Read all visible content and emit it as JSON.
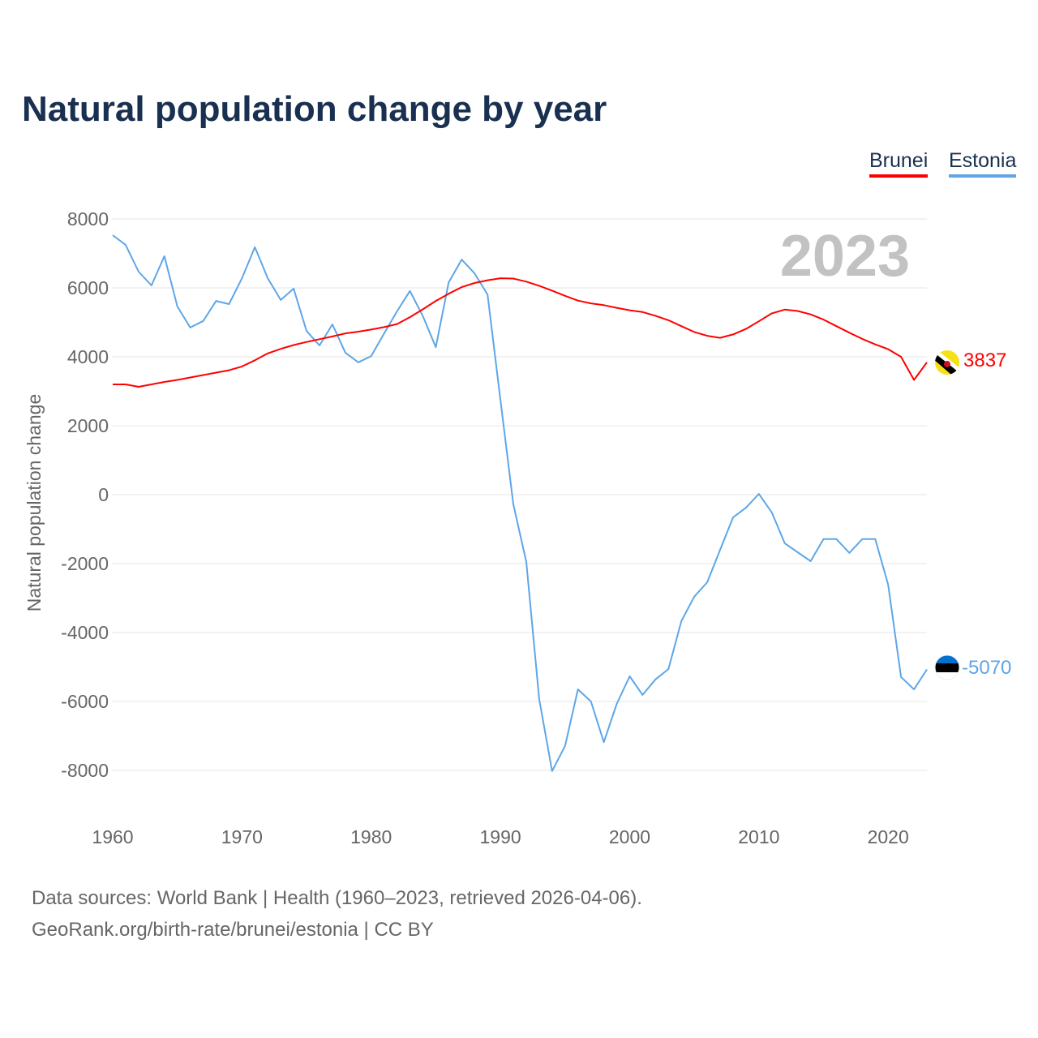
{
  "chart_data": {
    "type": "line",
    "title": "Natural population change by year",
    "xlabel": "",
    "ylabel": "Natural population change",
    "xlim": [
      1960,
      2023
    ],
    "ylim": [
      -8000,
      8000
    ],
    "yticks": [
      8000,
      6000,
      4000,
      2000,
      0,
      -2000,
      -4000,
      -6000,
      -8000
    ],
    "xticks": [
      1960,
      1970,
      1980,
      1990,
      2000,
      2010,
      2020
    ],
    "grid": true,
    "legend_position": "top-right",
    "year_label": "2023",
    "x": [
      1960,
      1961,
      1962,
      1963,
      1964,
      1965,
      1966,
      1967,
      1968,
      1969,
      1970,
      1971,
      1972,
      1973,
      1974,
      1975,
      1976,
      1977,
      1978,
      1979,
      1980,
      1981,
      1982,
      1983,
      1984,
      1985,
      1986,
      1987,
      1988,
      1989,
      1990,
      1991,
      1992,
      1993,
      1994,
      1995,
      1996,
      1997,
      1998,
      1999,
      2000,
      2001,
      2002,
      2003,
      2004,
      2005,
      2006,
      2007,
      2008,
      2009,
      2010,
      2011,
      2012,
      2013,
      2014,
      2015,
      2016,
      2017,
      2018,
      2019,
      2020,
      2021,
      2022,
      2023
    ],
    "series": [
      {
        "name": "Brunei",
        "color": "#ff0000",
        "end_label": "3837",
        "values": [
          3200,
          3200,
          3130,
          3200,
          3270,
          3330,
          3400,
          3470,
          3540,
          3610,
          3720,
          3900,
          4100,
          4230,
          4340,
          4430,
          4510,
          4590,
          4680,
          4730,
          4790,
          4860,
          4950,
          5150,
          5380,
          5620,
          5830,
          6020,
          6140,
          6220,
          6280,
          6270,
          6180,
          6060,
          5920,
          5770,
          5630,
          5550,
          5500,
          5420,
          5350,
          5300,
          5190,
          5060,
          4890,
          4720,
          4610,
          4550,
          4650,
          4810,
          5030,
          5260,
          5370,
          5330,
          5230,
          5080,
          4890,
          4700,
          4520,
          4360,
          4220,
          4000,
          3330,
          3837
        ]
      },
      {
        "name": "Estonia",
        "color": "#5ea6e8",
        "end_label": "-5070",
        "values": [
          7530,
          7250,
          6470,
          6070,
          6920,
          5460,
          4850,
          5040,
          5620,
          5530,
          6280,
          7180,
          6280,
          5650,
          5980,
          4750,
          4330,
          4940,
          4120,
          3840,
          4020,
          4680,
          5320,
          5910,
          5180,
          4280,
          6160,
          6820,
          6420,
          5810,
          2750,
          -280,
          -1950,
          -5930,
          -8020,
          -7290,
          -5650,
          -6000,
          -7180,
          -6070,
          -5270,
          -5810,
          -5360,
          -5060,
          -3670,
          -2960,
          -2540,
          -1600,
          -660,
          -380,
          20,
          -520,
          -1410,
          -1670,
          -1930,
          -1290,
          -1290,
          -1690,
          -1290,
          -1290,
          -2610,
          -5290,
          -5650,
          -5070
        ]
      }
    ]
  },
  "source": {
    "line1": "Data sources: World Bank | Health (1960–2023, retrieved 2026-04-06).",
    "line2": "GeoRank.org/birth-rate/brunei/estonia | CC BY"
  }
}
